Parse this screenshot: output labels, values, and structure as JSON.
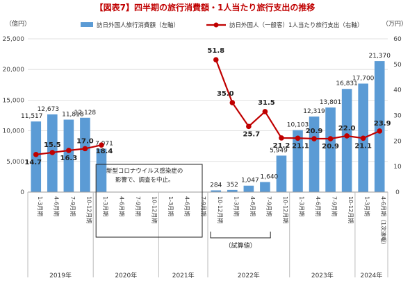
{
  "title": "【図表7】四半期の旅行消費額・1人当たり旅行支出の推移",
  "colors": {
    "bar": "#5b9bd5",
    "line": "#c00000",
    "title": "#c00000",
    "axis": "#444444",
    "grid": "#d9d9d9"
  },
  "chart_data": {
    "type": "bar",
    "left_axis": {
      "unit": "（億円）",
      "ylim": [
        0,
        25000
      ],
      "ticks": [
        "0",
        "5,000",
        "10,000",
        "15,000",
        "20,000",
        "25,000"
      ]
    },
    "right_axis": {
      "unit": "（万円）",
      "ylim": [
        0,
        60
      ],
      "ticks": [
        "0",
        "10",
        "20",
        "30",
        "40",
        "50",
        "60"
      ]
    },
    "legend": {
      "bar": "訪日外国人旅行消費額（左軸）",
      "line": "訪日外国人（一般客）1人当たり旅行支出（右軸）"
    },
    "categories": [
      "1-3月期",
      "4-6月期",
      "7-9月期",
      "10-12月期",
      "1-3月期",
      "4-6月期",
      "7-9月期",
      "10-12月期",
      "1-3月期",
      "4-6月期",
      "7-9月期",
      "10-12月期",
      "1-3月期",
      "4-6月期",
      "7-9月期",
      "10-12月期",
      "1-3月期",
      "4-6月期",
      "7-9月期",
      "10-12月期",
      "1-3月期",
      "4-6月期（1次速報）"
    ],
    "years": [
      {
        "label": "2019年",
        "start": 0,
        "end": 3
      },
      {
        "label": "2020年",
        "start": 4,
        "end": 7
      },
      {
        "label": "2021年",
        "start": 8,
        "end": 10
      },
      {
        "label": "2022年",
        "start": 11,
        "end": 15
      },
      {
        "label": "2023年",
        "start": 16,
        "end": 19
      },
      {
        "label": "2024年",
        "start": 20,
        "end": 21
      }
    ],
    "series": [
      {
        "name": "訪日外国人旅行消費額（左軸）",
        "type": "bar",
        "values": [
          11517,
          12673,
          11818,
          12128,
          7071,
          null,
          null,
          null,
          null,
          null,
          null,
          284,
          352,
          1047,
          1640,
          5949,
          10103,
          12319,
          13801,
          16831,
          17700,
          21370
        ],
        "labels": [
          "11,517",
          "12,673",
          "11,818",
          "12,128",
          "7,071",
          "",
          "",
          "",
          "",
          "",
          "",
          "284",
          "352",
          "1,047",
          "1,640",
          "5,949",
          "10,103",
          "12,319",
          "13,801",
          "16,831",
          "17,700",
          "21,370"
        ]
      },
      {
        "name": "訪日外国人（一般客）1人当たり旅行支出（右軸）",
        "type": "line",
        "values": [
          14.7,
          15.5,
          16.3,
          17.0,
          18.4,
          null,
          null,
          null,
          null,
          null,
          null,
          51.8,
          35.0,
          25.7,
          31.5,
          21.2,
          21.1,
          20.9,
          20.9,
          22.0,
          21.1,
          23.9
        ],
        "labels": [
          "14.7",
          "15.5",
          "16.3",
          "17.0",
          "18.4",
          "",
          "",
          "",
          "",
          "",
          "",
          "51.8",
          "35.0",
          "25.7",
          "31.5",
          "21.2",
          "21.1",
          "20.9",
          "20.9",
          "22.0",
          "21.1",
          "23.9"
        ]
      }
    ],
    "annotations": {
      "covid_note_1": "新型コロナウイルス感染症の",
      "covid_note_2": "影響で、調査を中止。",
      "provisional": "（試算値）"
    }
  }
}
